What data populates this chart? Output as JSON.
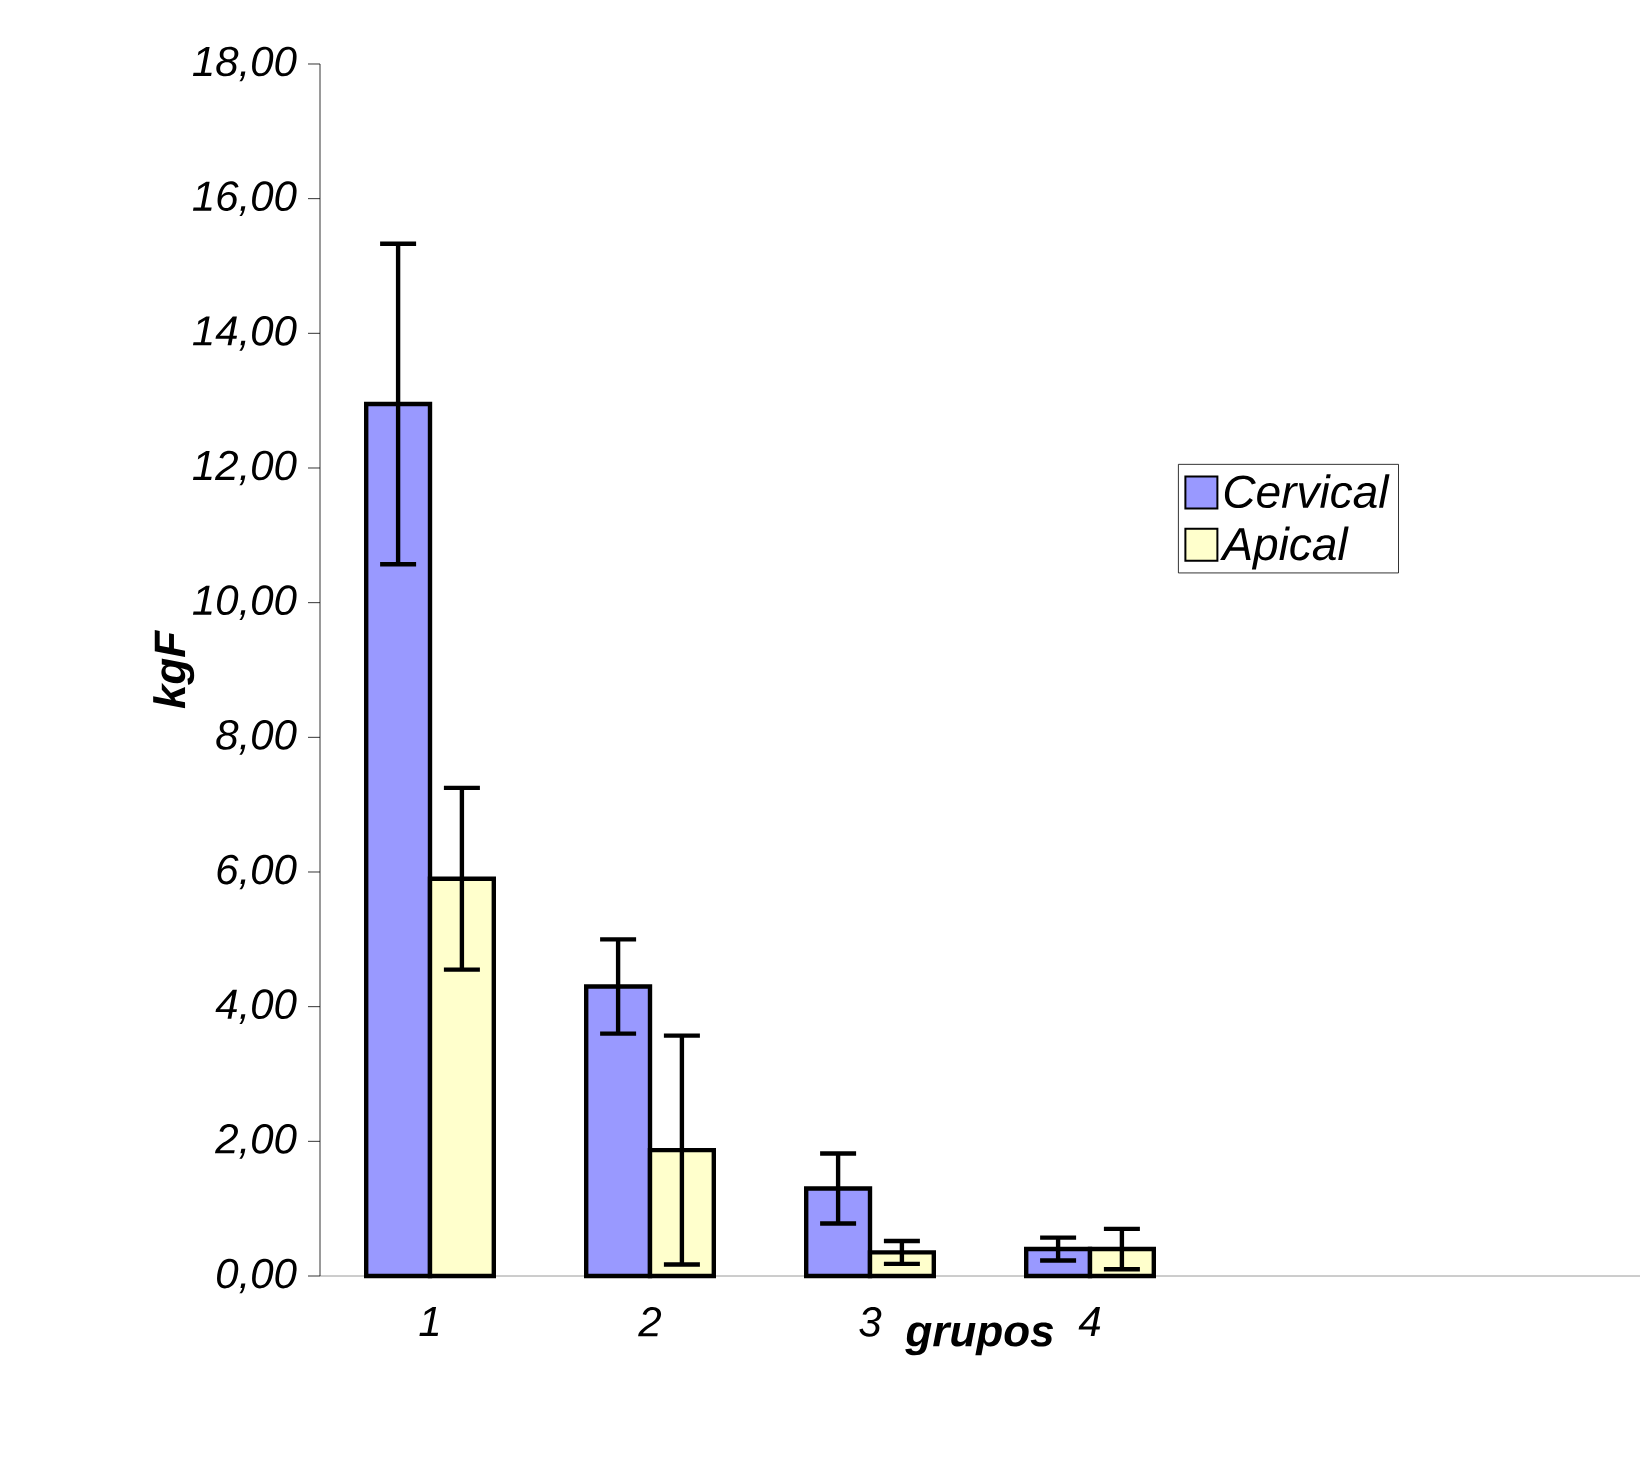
{
  "chart_data": {
    "type": "bar",
    "xlabel": "grupos",
    "ylabel": "kgF",
    "categories": [
      "1",
      "2",
      "3",
      "4",
      null,
      null
    ],
    "series": [
      {
        "name": "Cervical",
        "color": "#9999ff",
        "values": [
          12.95,
          4.3,
          1.3,
          0.4,
          null,
          null
        ],
        "errors": [
          2.38,
          0.7,
          0.52,
          0.17,
          null,
          null
        ]
      },
      {
        "name": "Apical",
        "color": "#ffffcc",
        "values": [
          5.9,
          1.87,
          0.35,
          0.4,
          null,
          null
        ],
        "errors": [
          1.35,
          1.7,
          0.17,
          0.3,
          null,
          null
        ]
      }
    ],
    "ylim": [
      0,
      18
    ],
    "yticks": [
      {
        "value": 0,
        "label": "0,00"
      },
      {
        "value": 2,
        "label": "2,00"
      },
      {
        "value": 4,
        "label": "4,00"
      },
      {
        "value": 6,
        "label": "6,00"
      },
      {
        "value": 8,
        "label": "8,00"
      },
      {
        "value": 10,
        "label": "10,00"
      },
      {
        "value": 12,
        "label": "12,00"
      },
      {
        "value": 14,
        "label": "14,00"
      },
      {
        "value": 16,
        "label": "16,00"
      },
      {
        "value": 18,
        "label": "18,00"
      }
    ],
    "grid": false,
    "legend": "right"
  }
}
